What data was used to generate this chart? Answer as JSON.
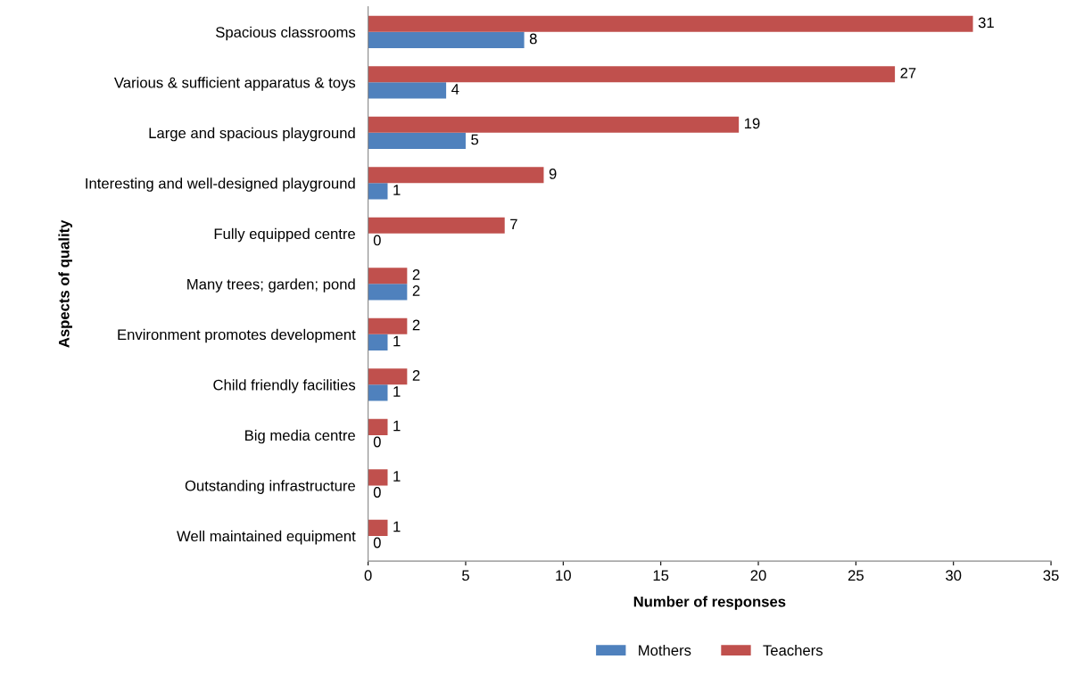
{
  "chart_data": {
    "type": "bar",
    "orientation": "horizontal",
    "xlabel": "Number of responses",
    "ylabel": "Aspects of quality",
    "categories": [
      "Spacious classrooms",
      "Various & sufficient apparatus & toys",
      "Large and spacious playground",
      "Interesting and well-designed playground",
      "Fully equipped centre",
      "Many trees; garden; pond",
      "Environment promotes development",
      "Child friendly facilities",
      "Big media centre",
      "Outstanding infrastructure",
      "Well maintained equipment"
    ],
    "series": [
      {
        "name": "Mothers",
        "color": "#4f81bd",
        "values": [
          8,
          4,
          5,
          1,
          0,
          2,
          1,
          1,
          0,
          0,
          0
        ]
      },
      {
        "name": "Teachers",
        "color": "#c0504d",
        "values": [
          31,
          27,
          19,
          9,
          7,
          2,
          2,
          2,
          1,
          1,
          1
        ]
      }
    ],
    "xlim": [
      0,
      35
    ],
    "xticks": [
      0,
      5,
      10,
      15,
      20,
      25,
      30,
      35
    ],
    "grid": false,
    "legend": "bottom",
    "data_labels": true
  }
}
